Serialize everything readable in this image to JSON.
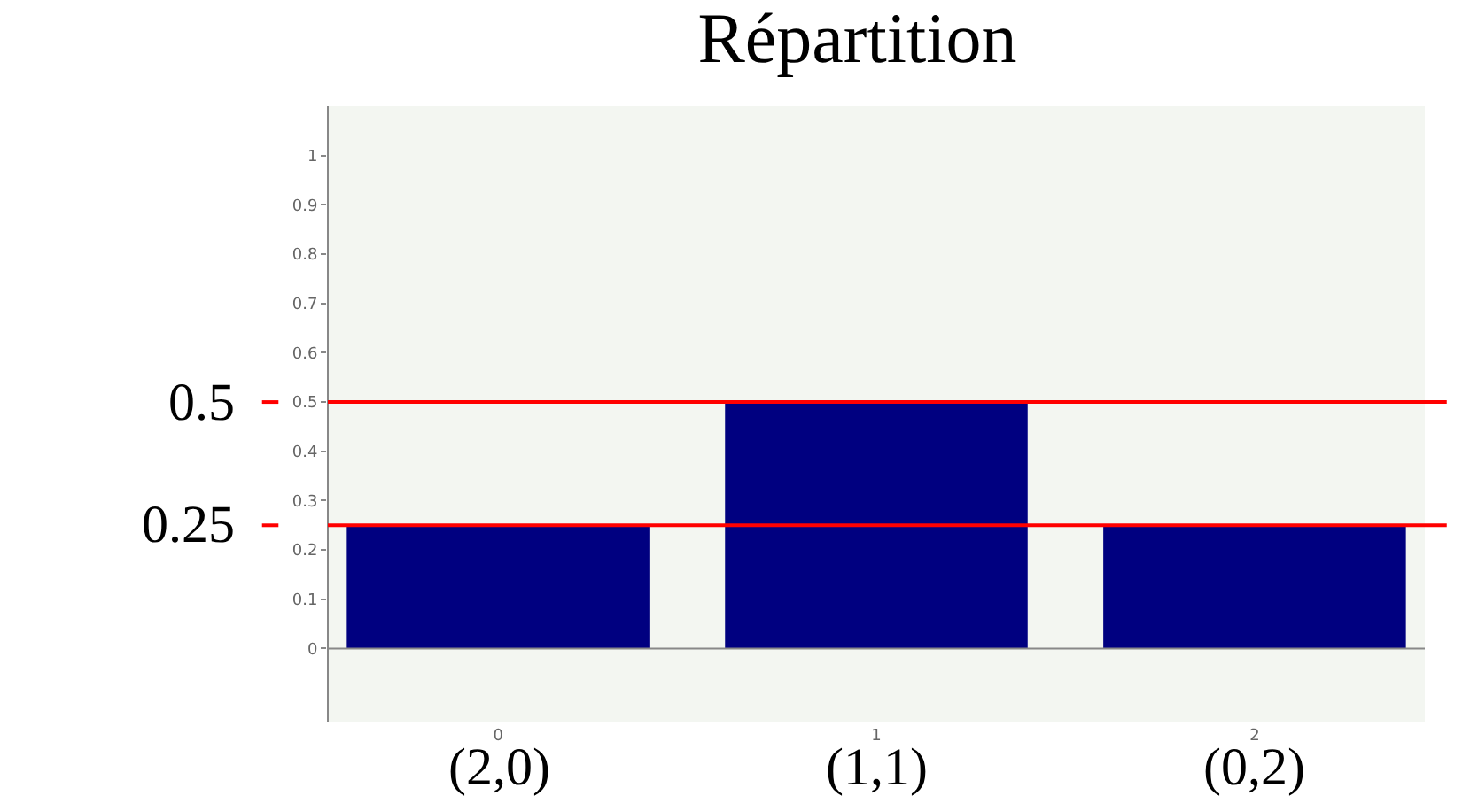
{
  "chart_data": {
    "type": "bar",
    "title": "Répartition",
    "x": [
      0,
      1,
      2
    ],
    "values": [
      0.25,
      0.5,
      0.25
    ],
    "color": "#000080",
    "xlim": [
      -0.45,
      2.45
    ],
    "xticks": [
      0,
      1,
      2
    ],
    "ylim": [
      -0.15,
      1.1
    ],
    "yticks": [
      0,
      0.1,
      0.2,
      0.3,
      0.4,
      0.5,
      0.6,
      0.7,
      0.8,
      0.9,
      1
    ],
    "ref_lines": [
      {
        "axis": "y",
        "value": 0.5,
        "label": "0.5",
        "color": "#ff0000"
      },
      {
        "axis": "y",
        "value": 0.25,
        "label": "0.25",
        "color": "#ff0000"
      }
    ],
    "annotations": [
      "(2,0)",
      "(1,1)",
      "(0,2)"
    ]
  }
}
